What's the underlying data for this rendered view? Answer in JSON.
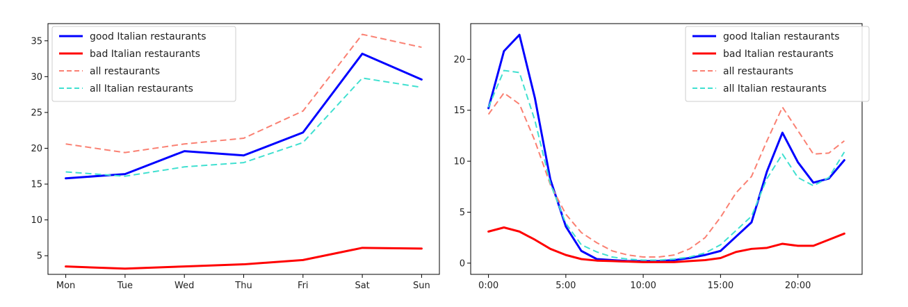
{
  "chart_data": [
    {
      "type": "line",
      "title": "",
      "xlabel": "",
      "ylabel": "",
      "categories": [
        "Mon",
        "Tue",
        "Wed",
        "Thu",
        "Fri",
        "Sat",
        "Sun"
      ],
      "ylim": [
        2.4,
        37.4
      ],
      "yticks": [
        5,
        10,
        15,
        20,
        25,
        30,
        35
      ],
      "grid": false,
      "legend_position": "top-left",
      "series": [
        {
          "name": "good Italian restaurants",
          "color": "#0000ff",
          "style": "solid",
          "values": [
            15.8,
            16.4,
            19.6,
            19.0,
            22.2,
            33.2,
            29.6
          ]
        },
        {
          "name": "bad Italian restaurants",
          "color": "#ff0000",
          "style": "solid",
          "values": [
            3.5,
            3.2,
            3.5,
            3.8,
            4.4,
            6.1,
            6.0
          ]
        },
        {
          "name": "all restaurants",
          "color": "#fa8072",
          "style": "dashed",
          "values": [
            20.6,
            19.4,
            20.6,
            21.4,
            25.2,
            35.9,
            34.1
          ]
        },
        {
          "name": "all Italian restaurants",
          "color": "#40e0d0",
          "style": "dashed",
          "values": [
            16.7,
            16.1,
            17.4,
            18.0,
            20.8,
            29.8,
            28.5
          ]
        }
      ]
    },
    {
      "type": "line",
      "title": "",
      "xlabel": "",
      "ylabel": "",
      "x": [
        0,
        1,
        2,
        3,
        4,
        5,
        6,
        7,
        8,
        9,
        10,
        11,
        12,
        13,
        14,
        15,
        16,
        17,
        18,
        19,
        20,
        21,
        22,
        23
      ],
      "xticks": [
        0,
        5,
        10,
        15,
        20
      ],
      "xticklabels": [
        "0:00",
        "5:00",
        "10:00",
        "15:00",
        "20:00"
      ],
      "xlim": [
        -1.15,
        24.15
      ],
      "ylim": [
        -1.1,
        23.5
      ],
      "yticks": [
        0,
        5,
        10,
        15,
        20
      ],
      "grid": false,
      "legend_position": "top-right",
      "series": [
        {
          "name": "good Italian restaurants",
          "color": "#0000ff",
          "style": "solid",
          "values": [
            15.2,
            20.8,
            22.4,
            16.2,
            8.2,
            3.6,
            1.2,
            0.4,
            0.3,
            0.2,
            0.2,
            0.2,
            0.3,
            0.5,
            0.8,
            1.2,
            2.6,
            4.0,
            9.0,
            12.8,
            9.9,
            7.9,
            8.3,
            10.1
          ]
        },
        {
          "name": "bad Italian restaurants",
          "color": "#ff0000",
          "style": "solid",
          "values": [
            3.1,
            3.5,
            3.1,
            2.3,
            1.4,
            0.8,
            0.4,
            0.25,
            0.2,
            0.15,
            0.1,
            0.1,
            0.1,
            0.2,
            0.3,
            0.5,
            1.1,
            1.4,
            1.5,
            1.9,
            1.7,
            1.7,
            2.3,
            2.9
          ]
        },
        {
          "name": "all restaurants",
          "color": "#fa8072",
          "style": "dashed",
          "values": [
            14.6,
            16.7,
            15.6,
            12.0,
            7.7,
            4.8,
            3.0,
            2.0,
            1.2,
            0.8,
            0.6,
            0.6,
            0.8,
            1.4,
            2.5,
            4.5,
            6.9,
            8.5,
            12.0,
            15.3,
            13.0,
            10.7,
            10.8,
            12.0
          ]
        },
        {
          "name": "all Italian restaurants",
          "color": "#40e0d0",
          "style": "dashed",
          "values": [
            15.3,
            18.9,
            18.7,
            14.0,
            7.8,
            3.9,
            1.8,
            1.1,
            0.6,
            0.4,
            0.3,
            0.3,
            0.4,
            0.6,
            1.0,
            1.8,
            3.2,
            4.6,
            8.3,
            10.7,
            8.4,
            7.6,
            8.4,
            10.9
          ]
        }
      ]
    }
  ]
}
